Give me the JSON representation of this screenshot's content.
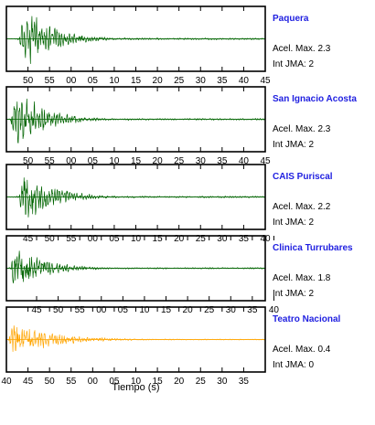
{
  "chart_data": [
    {
      "type": "line",
      "station": "Paquera",
      "accel_label": "Acel. Max. 2.3",
      "int_label": "Int JMA: 2",
      "color": "#006400",
      "peak_amplitude": 2.3,
      "onset_s": 3,
      "duration_s": 60,
      "tick_labels": [
        "50",
        "55",
        "00",
        "05",
        "10",
        "15",
        "20",
        "25",
        "30",
        "35",
        "40",
        "45"
      ],
      "first_tick_s": 5
    },
    {
      "type": "line",
      "station": "San Ignacio Acosta",
      "accel_label": "Acel. Max. 2.3",
      "int_label": "Int JMA: 2",
      "color": "#006400",
      "peak_amplitude": 2.3,
      "onset_s": 1,
      "duration_s": 60,
      "tick_labels": [
        "50",
        "55",
        "00",
        "05",
        "10",
        "15",
        "20",
        "25",
        "30",
        "35",
        "40",
        "45"
      ],
      "first_tick_s": 5
    },
    {
      "type": "line",
      "station": "CAIS Puriscal",
      "accel_label": "Acel. Max. 2.2",
      "int_label": "Int JMA: 2",
      "color": "#006400",
      "peak_amplitude": 2.2,
      "onset_s": 3,
      "duration_s": 60,
      "tick_labels": [
        "45",
        "50",
        "55",
        "00",
        "05",
        "10",
        "15",
        "20",
        "25",
        "30",
        "35",
        "40"
      ],
      "first_tick_s": 5
    },
    {
      "type": "line",
      "station": "Clinica Turrubares",
      "accel_label": "Acel. Max. 1.8",
      "int_label": "Int JMA: 2",
      "color": "#006400",
      "peak_amplitude": 1.8,
      "onset_s": 1,
      "duration_s": 60,
      "tick_labels": [
        "45",
        "50",
        "55",
        "00",
        "05",
        "10",
        "15",
        "20",
        "25",
        "30",
        "35",
        "40"
      ],
      "first_tick_s": 7
    },
    {
      "type": "line",
      "station": "Teatro Nacional",
      "accel_label": "Acel. Max. 0.4",
      "int_label": "Int JMA: 0",
      "color": "#FFA500",
      "peak_amplitude": 0.4,
      "onset_s": 0.5,
      "duration_s": 60,
      "tick_labels": [
        "40",
        "45",
        "50",
        "55",
        "00",
        "05",
        "10",
        "15",
        "20",
        "25",
        "30",
        "35"
      ],
      "first_tick_s": 0
    }
  ],
  "xlabel": "Tiempo (s)"
}
